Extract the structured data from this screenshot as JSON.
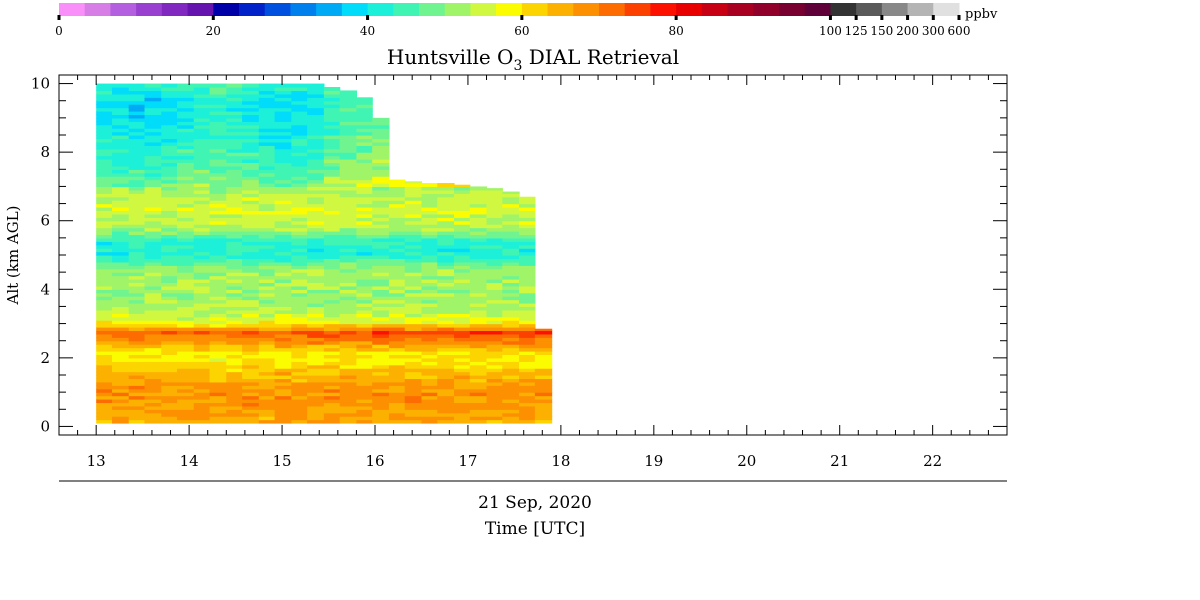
{
  "chart_data": {
    "type": "heatmap",
    "title": "Huntsville O",
    "title_subscript": "3",
    "title_suffix": " DIAL Retrieval",
    "ylabel": "Alt (km AGL)",
    "xlabel": "Time [UTC]",
    "date_label": "21 Sep, 2020",
    "xlim": [
      12.6,
      22.8
    ],
    "ylim": [
      -0.25,
      10.25
    ],
    "x_ticks": [
      13,
      14,
      15,
      16,
      17,
      18,
      19,
      20,
      21,
      22
    ],
    "y_ticks": [
      0,
      2,
      4,
      6,
      8,
      10
    ],
    "colorbar": {
      "unit": "ppbv",
      "bins": [
        {
          "lo": 0,
          "hi": 3.33,
          "color": "#f990f9"
        },
        {
          "lo": 3.33,
          "hi": 6.67,
          "color": "#d67ee6"
        },
        {
          "lo": 6.67,
          "hi": 10,
          "color": "#b45ee0"
        },
        {
          "lo": 10,
          "hi": 13.33,
          "color": "#9940d0"
        },
        {
          "lo": 13.33,
          "hi": 16.67,
          "color": "#8028c0"
        },
        {
          "lo": 16.67,
          "hi": 20,
          "color": "#6614b0"
        },
        {
          "lo": 20,
          "hi": 23.33,
          "color": "#0000a8"
        },
        {
          "lo": 23.33,
          "hi": 26.67,
          "color": "#0022c8"
        },
        {
          "lo": 26.67,
          "hi": 30,
          "color": "#0050e0"
        },
        {
          "lo": 30,
          "hi": 33.33,
          "color": "#0080ec"
        },
        {
          "lo": 33.33,
          "hi": 36.67,
          "color": "#00aaf4"
        },
        {
          "lo": 36.67,
          "hi": 40,
          "color": "#00dcfa"
        },
        {
          "lo": 40,
          "hi": 43.33,
          "color": "#1cf0d8"
        },
        {
          "lo": 43.33,
          "hi": 46.67,
          "color": "#40f4b4"
        },
        {
          "lo": 46.67,
          "hi": 50,
          "color": "#70f490"
        },
        {
          "lo": 50,
          "hi": 53.33,
          "color": "#a0f468"
        },
        {
          "lo": 53.33,
          "hi": 56.67,
          "color": "#d0f840"
        },
        {
          "lo": 56.67,
          "hi": 60,
          "color": "#fcfc00"
        },
        {
          "lo": 60,
          "hi": 63.33,
          "color": "#fcd400"
        },
        {
          "lo": 63.33,
          "hi": 66.67,
          "color": "#fcb000"
        },
        {
          "lo": 66.67,
          "hi": 70,
          "color": "#fc9000"
        },
        {
          "lo": 70,
          "hi": 73.33,
          "color": "#fc6c00"
        },
        {
          "lo": 73.33,
          "hi": 76.67,
          "color": "#fc4000"
        },
        {
          "lo": 76.67,
          "hi": 80,
          "color": "#fc1000"
        },
        {
          "lo": 80,
          "hi": 83.33,
          "color": "#e80000"
        },
        {
          "lo": 83.33,
          "hi": 86.67,
          "color": "#c80014"
        },
        {
          "lo": 86.67,
          "hi": 90,
          "color": "#a80020"
        },
        {
          "lo": 90,
          "hi": 93.33,
          "color": "#90002a"
        },
        {
          "lo": 93.33,
          "hi": 96.67,
          "color": "#780030"
        },
        {
          "lo": 96.67,
          "hi": 100,
          "color": "#600038"
        },
        {
          "lo": 100,
          "hi": 125,
          "color": "#333333"
        },
        {
          "lo": 125,
          "hi": 150,
          "color": "#5a5a5a"
        },
        {
          "lo": 150,
          "hi": 200,
          "color": "#888888"
        },
        {
          "lo": 200,
          "hi": 300,
          "color": "#b4b4b4"
        },
        {
          "lo": 300,
          "hi": 600,
          "color": "#e0e0e0"
        }
      ],
      "tick_labels": [
        {
          "bin": 0,
          "text": "0"
        },
        {
          "bin": 6,
          "text": "20"
        },
        {
          "bin": 12,
          "text": "40"
        },
        {
          "bin": 18,
          "text": "60"
        },
        {
          "bin": 24,
          "text": "80"
        },
        {
          "bin": 30,
          "text": "100"
        },
        {
          "bin": 31,
          "text": "125"
        },
        {
          "bin": 32,
          "text": "150"
        },
        {
          "bin": 33,
          "text": "200"
        },
        {
          "bin": 34,
          "text": "300"
        },
        {
          "bin": 35,
          "text": "600"
        }
      ]
    },
    "time_bins": [
      13.0,
      13.17,
      13.35,
      13.52,
      13.7,
      13.87,
      14.05,
      14.22,
      14.4,
      14.57,
      14.75,
      14.92,
      15.1,
      15.27,
      15.45,
      15.62,
      15.8,
      15.97,
      16.15,
      16.32,
      16.5,
      16.67,
      16.85,
      17.02,
      17.2,
      17.37,
      17.55,
      17.72,
      17.9
    ],
    "column_top_km": [
      10.0,
      10.0,
      10.0,
      10.0,
      10.0,
      10.0,
      10.0,
      10.0,
      10.0,
      10.0,
      10.0,
      10.0,
      10.0,
      10.0,
      9.9,
      9.8,
      9.6,
      9.0,
      7.2,
      7.15,
      7.1,
      7.1,
      7.05,
      7.0,
      6.95,
      6.85,
      6.7,
      2.85
    ],
    "profile": [
      {
        "alt": 0.0,
        "ppbv": 64
      },
      {
        "alt": 0.2,
        "ppbv": 66
      },
      {
        "alt": 0.5,
        "ppbv": 67
      },
      {
        "alt": 1.0,
        "ppbv": 68
      },
      {
        "alt": 1.5,
        "ppbv": 65
      },
      {
        "alt": 1.9,
        "ppbv": 59
      },
      {
        "alt": 2.2,
        "ppbv": 60
      },
      {
        "alt": 2.5,
        "ppbv": 68
      },
      {
        "alt": 2.75,
        "ppbv": 72
      },
      {
        "alt": 3.0,
        "ppbv": 58
      },
      {
        "alt": 3.3,
        "ppbv": 54
      },
      {
        "alt": 3.7,
        "ppbv": 51
      },
      {
        "alt": 4.2,
        "ppbv": 52
      },
      {
        "alt": 4.6,
        "ppbv": 51
      },
      {
        "alt": 5.0,
        "ppbv": 42
      },
      {
        "alt": 5.4,
        "ppbv": 43
      },
      {
        "alt": 5.8,
        "ppbv": 53
      },
      {
        "alt": 6.3,
        "ppbv": 56
      },
      {
        "alt": 6.8,
        "ppbv": 53
      },
      {
        "alt": 7.5,
        "ppbv": 48
      },
      {
        "alt": 8.5,
        "ppbv": 44
      },
      {
        "alt": 9.5,
        "ppbv": 42
      },
      {
        "alt": 10.0,
        "ppbv": 46
      }
    ]
  }
}
